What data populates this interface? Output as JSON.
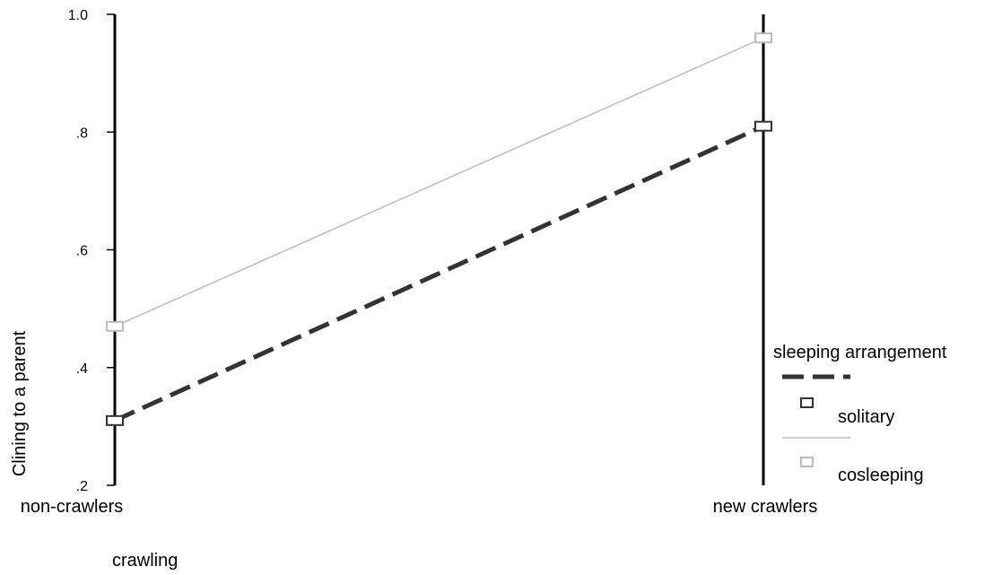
{
  "chart_data": {
    "type": "line",
    "title": "",
    "xlabel": "crawling",
    "ylabel": "Clining to a parent",
    "categories": [
      "non-crawlers",
      "new crawlers"
    ],
    "ylim": [
      0.2,
      1.0
    ],
    "yticks": [
      {
        "value": 1.0,
        "label": "1.0"
      },
      {
        "value": 0.8,
        "label": ".8"
      },
      {
        "value": 0.6,
        "label": ".6"
      },
      {
        "value": 0.4,
        "label": ".4"
      },
      {
        "value": 0.2,
        "label": ".2"
      }
    ],
    "grid": false,
    "legend": {
      "title": "sleeping arrangement",
      "placement": "right"
    },
    "series": [
      {
        "name": "solitary",
        "values": [
          0.31,
          0.81
        ],
        "color": "#333333",
        "style": "dashed",
        "marker": "square"
      },
      {
        "name": "cosleeping",
        "values": [
          0.47,
          0.96
        ],
        "color": "#bbbbbb",
        "style": "solid",
        "marker": "square"
      }
    ]
  }
}
